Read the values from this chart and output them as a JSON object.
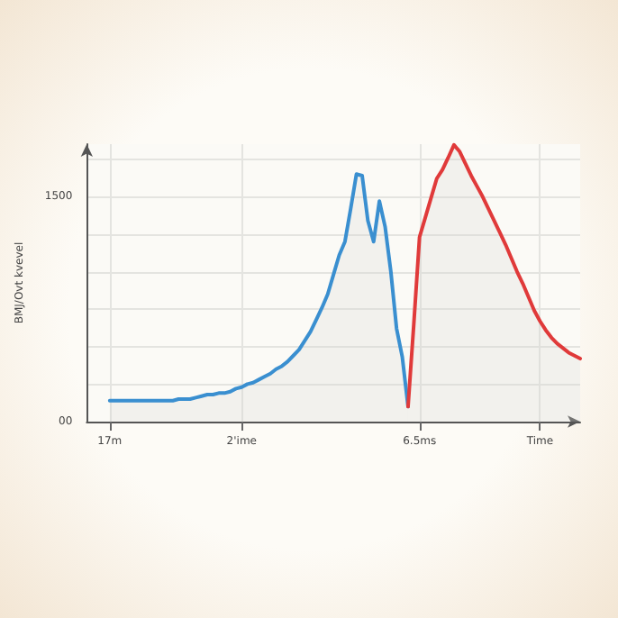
{
  "chart_data": {
    "type": "area",
    "ylabel": "BMJ/Ovt kvevel",
    "categories": [
      null,
      null,
      null,
      null,
      "17m",
      null,
      null,
      null,
      null,
      null,
      null,
      null,
      null,
      null,
      null,
      null,
      null,
      null,
      null,
      null,
      null,
      null,
      null,
      null,
      null,
      null,
      null,
      "2'ime",
      null,
      null,
      null,
      null,
      null,
      null,
      null,
      null,
      null,
      null,
      null,
      null,
      null,
      null,
      null,
      null,
      null,
      null,
      null,
      null,
      null,
      null,
      null,
      null,
      null,
      null,
      null,
      null,
      null,
      null,
      "6.5ms",
      null,
      null,
      null,
      null,
      null,
      null,
      null,
      null,
      null,
      null,
      null,
      null,
      null,
      null,
      null,
      null,
      null,
      null,
      null,
      null,
      "Time",
      null,
      null,
      null,
      null,
      null,
      null,
      null
    ],
    "series": [
      {
        "color": "#3a8fd0",
        "values": [
          null,
          null,
          null,
          null,
          140,
          140,
          140,
          140,
          140,
          140,
          140,
          140,
          140,
          140,
          140,
          140,
          150,
          150,
          150,
          160,
          170,
          180,
          180,
          190,
          190,
          200,
          220,
          230,
          250,
          260,
          280,
          300,
          320,
          350,
          370,
          400,
          440,
          480,
          540,
          600,
          680,
          760,
          850,
          980,
          1110,
          1200,
          1420,
          1650,
          1640,
          1340,
          1200,
          1470,
          1300,
          1000,
          620,
          430,
          100,
          null,
          null,
          null,
          null,
          null,
          null,
          null,
          null,
          null,
          null,
          null,
          null,
          null,
          null,
          null,
          null,
          null,
          null,
          null,
          null,
          null,
          null,
          null,
          null,
          null,
          null,
          null,
          null,
          null,
          null
        ]
      },
      {
        "color": "#e03a3a",
        "values": [
          null,
          null,
          null,
          null,
          null,
          null,
          null,
          null,
          null,
          null,
          null,
          null,
          null,
          null,
          null,
          null,
          null,
          null,
          null,
          null,
          null,
          null,
          null,
          null,
          null,
          null,
          null,
          null,
          null,
          null,
          null,
          null,
          null,
          null,
          null,
          null,
          null,
          null,
          null,
          null,
          null,
          null,
          null,
          null,
          null,
          null,
          null,
          null,
          null,
          null,
          null,
          null,
          null,
          null,
          null,
          null,
          100,
          650,
          1230,
          1360,
          1490,
          1620,
          1680,
          1760,
          1845,
          1800,
          1720,
          1640,
          1570,
          1500,
          1420,
          1340,
          1260,
          1180,
          1090,
          1000,
          920,
          830,
          740,
          670,
          610,
          560,
          520,
          490,
          460,
          440,
          420
        ]
      }
    ],
    "ylim": [
      0,
      1850
    ],
    "yticks": [
      {
        "value": 0,
        "label": "00"
      },
      {
        "value": 250,
        "label": null
      },
      {
        "value": 500,
        "label": null
      },
      {
        "value": 750,
        "label": null
      },
      {
        "value": 1000,
        "label": null
      },
      {
        "value": 1250,
        "label": null
      },
      1500,
      {
        "value": 1750,
        "label": null
      }
    ],
    "grid": true,
    "marker": "none",
    "line_style": "solid"
  }
}
